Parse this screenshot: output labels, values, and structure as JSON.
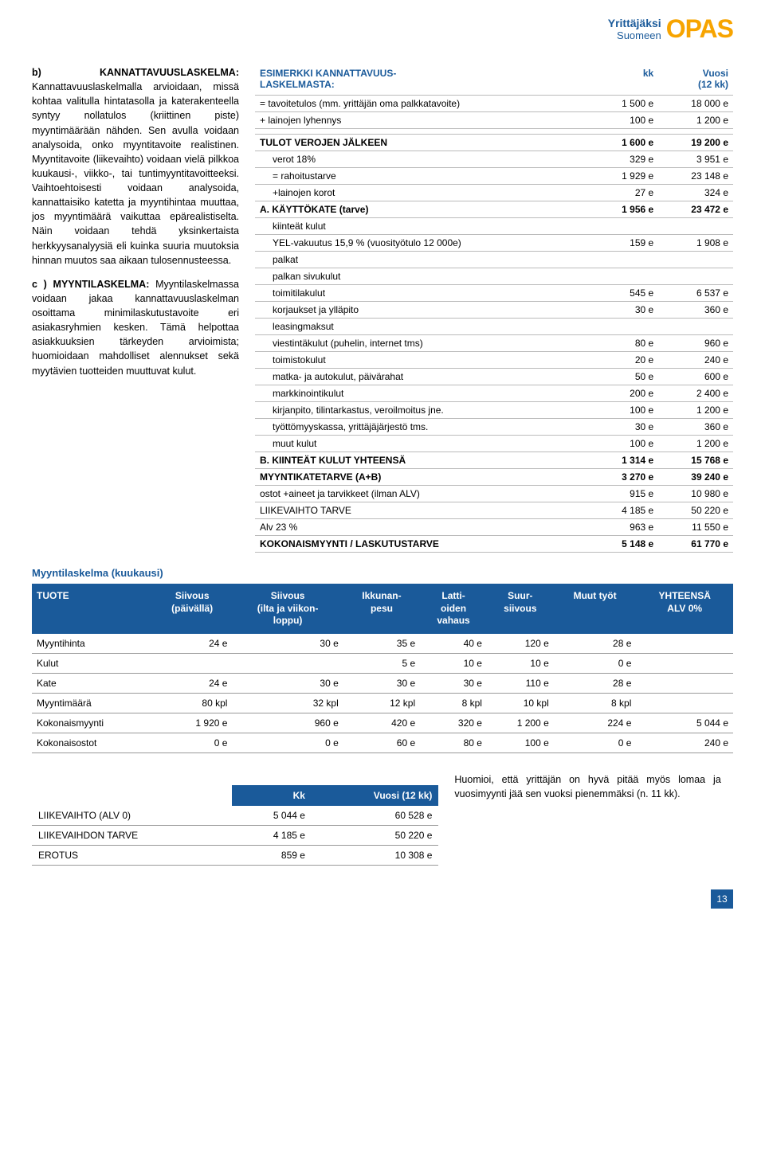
{
  "logo": {
    "line1": "Yrittäjäksi",
    "line2": "Suomeen",
    "opas": "OPAS"
  },
  "left": {
    "b_title": "b) KANNATTAVUUSLASKELMA:",
    "b_body": "Kannattavuuslaskelmalla arvioidaan, missä kohtaa valitulla hintatasolla ja katerakenteella syntyy nollatulos (kriittinen piste) myyntimäärään nähden. Sen avulla voidaan analysoida, onko myyntitavoite realistinen. Myyntitavoite (liikevaihto) voidaan vielä pilkkoa kuukausi-, viikko-, tai tuntimyyntitavoitteeksi. Vaihtoehtoisesti voidaan analysoida, kannattaisiko katetta ja myyntihintaa muuttaa, jos myyntimäärä vaikuttaa epärealistiselta. Näin voidaan tehdä yksinkertaista herkkyysanalyysiä eli kuinka suuria muutoksia hinnan muutos saa aikaan tulosennusteessa.",
    "c_title": "c ) MYYNTILASKELMA:",
    "c_body": "Myyntilaskelmassa voidaan jakaa kannattavuuslaskelman osoittama minimilaskutustavoite eri asiakasryhmien kesken. Tämä helpottaa asiakkuuksien tärkeyden arvioimista; huomioidaan mahdolliset alennukset sekä myytävien tuotteiden muuttuvat kulut."
  },
  "profit": {
    "title_left": "ESIMERKKI KANNATTAVUUS-\nLASKELMASTA:",
    "col_kk": "kk",
    "col_vuosi": "Vuosi\n(12 kk)",
    "rows": [
      {
        "l": "= tavoitetulos (mm. yrittäjän oma palkkatavoite)",
        "a": "1 500 e",
        "b": "18 000 e"
      },
      {
        "l": "+ lainojen lyhennys",
        "a": "100 e",
        "b": "1 200 e"
      },
      {
        "l": "",
        "a": "",
        "b": ""
      },
      {
        "l": "TULOT VEROJEN JÄLKEEN",
        "a": "1 600 e",
        "b": "19 200 e",
        "bold": true
      },
      {
        "l": "verot 18%",
        "a": "329 e",
        "b": "3 951 e",
        "indent": 1
      },
      {
        "l": "= rahoitustarve",
        "a": "1 929 e",
        "b": "23 148 e",
        "indent": 1
      },
      {
        "l": "+lainojen korot",
        "a": "27 e",
        "b": "324 e",
        "indent": 1
      },
      {
        "l": "A. KÄYTTÖKATE (tarve)",
        "a": "1 956 e",
        "b": "23 472 e",
        "bold": true
      },
      {
        "l": "kiinteät kulut",
        "a": "",
        "b": "",
        "indent": 1
      },
      {
        "l": "YEL-vakuutus 15,9 % (vuosityötulo 12 000e)",
        "a": "159 e",
        "b": "1 908 e",
        "indent": 1
      },
      {
        "l": "palkat",
        "a": "",
        "b": "",
        "indent": 1
      },
      {
        "l": "palkan sivukulut",
        "a": "",
        "b": "",
        "indent": 1
      },
      {
        "l": "toimitilakulut",
        "a": "545 e",
        "b": "6 537 e",
        "indent": 1
      },
      {
        "l": "korjaukset ja ylläpito",
        "a": "30 e",
        "b": "360 e",
        "indent": 1
      },
      {
        "l": "leasingmaksut",
        "a": "",
        "b": "",
        "indent": 1
      },
      {
        "l": "viestintäkulut (puhelin, internet tms)",
        "a": "80 e",
        "b": "960 e",
        "indent": 1
      },
      {
        "l": "toimistokulut",
        "a": "20 e",
        "b": "240 e",
        "indent": 1
      },
      {
        "l": "matka- ja autokulut, päivärahat",
        "a": "50 e",
        "b": "600 e",
        "indent": 1
      },
      {
        "l": "markkinointikulut",
        "a": "200 e",
        "b": "2 400 e",
        "indent": 1
      },
      {
        "l": "kirjanpito, tilintarkastus, veroilmoitus jne.",
        "a": "100 e",
        "b": "1 200 e",
        "indent": 1
      },
      {
        "l": "työttömyyskassa, yrittäjäjärjestö tms.",
        "a": "30 e",
        "b": "360 e",
        "indent": 1
      },
      {
        "l": "muut kulut",
        "a": "100 e",
        "b": "1 200 e",
        "indent": 1
      },
      {
        "l": "B. KIINTEÄT KULUT YHTEENSÄ",
        "a": "1 314 e",
        "b": "15 768 e",
        "bold": true
      },
      {
        "l": "MYYNTIKATETARVE (A+B)",
        "a": "3 270 e",
        "b": "39 240 e",
        "bold": true
      },
      {
        "l": "ostot +aineet ja tarvikkeet (ilman ALV)",
        "a": "915 e",
        "b": "10 980 e"
      },
      {
        "l": "LIIKEVAIHTO TARVE",
        "a": "4 185 e",
        "b": "50 220 e"
      },
      {
        "l": "Alv 23 %",
        "a": "963 e",
        "b": "11 550 e"
      },
      {
        "l": "KOKONAISMYYNTI / LASKUTUSTARVE",
        "a": "5 148 e",
        "b": "61 770 e",
        "bold": true
      }
    ]
  },
  "myynti_title": "Myyntilaskelma (kuukausi)",
  "sales": {
    "cols": [
      "TUOTE",
      "Siivous\n(päivällä)",
      "Siivous\n(ilta ja viikon-\nloppu)",
      "Ikkunan-\npesu",
      "Latti-\noiden\nvahaus",
      "Suur-\nsiivous",
      "Muut työt",
      "YHTEENSÄ\nALV 0%"
    ],
    "rows": [
      {
        "label": "Myyntihinta",
        "cells": [
          "24 e",
          "30 e",
          "35 e",
          "40 e",
          "120 e",
          "28 e",
          ""
        ]
      },
      {
        "label": "Kulut",
        "cells": [
          "",
          "",
          "5 e",
          "10 e",
          "10 e",
          "0 e",
          ""
        ]
      },
      {
        "label": "Kate",
        "cells": [
          "24 e",
          "30 e",
          "30 e",
          "30 e",
          "110 e",
          "28 e",
          ""
        ]
      },
      {
        "label": "Myyntimäärä",
        "cells": [
          "80 kpl",
          "32 kpl",
          "12 kpl",
          "8 kpl",
          "10 kpl",
          "8 kpl",
          ""
        ]
      },
      {
        "label": "Kokonaismyynti",
        "cells": [
          "1 920 e",
          "960 e",
          "420 e",
          "320 e",
          "1 200 e",
          "224 e",
          "5 044 e"
        ]
      },
      {
        "label": "Kokonaisostot",
        "cells": [
          "0 e",
          "0 e",
          "60 e",
          "80 e",
          "100 e",
          "0 e",
          "240 e"
        ]
      }
    ]
  },
  "mini": {
    "cols": [
      "",
      "Kk",
      "Vuosi (12 kk)"
    ],
    "rows": [
      {
        "label": "LIIKEVAIHTO (ALV 0)",
        "a": "5 044 e",
        "b": "60 528 e"
      },
      {
        "label": "LIIKEVAIHDON TARVE",
        "a": "4 185 e",
        "b": "50 220 e"
      },
      {
        "label": "EROTUS",
        "a": "859 e",
        "b": "10 308 e"
      }
    ]
  },
  "footer_note": "Huomioi, että yrittäjän on hyvä pitää myös lomaa ja vuosimyynti jää sen vuoksi pienemmäksi (n. 11 kk).",
  "page_number": "13",
  "colors": {
    "blue": "#1a5a9a",
    "orange": "#f7a400",
    "border": "#bbbbbb"
  }
}
